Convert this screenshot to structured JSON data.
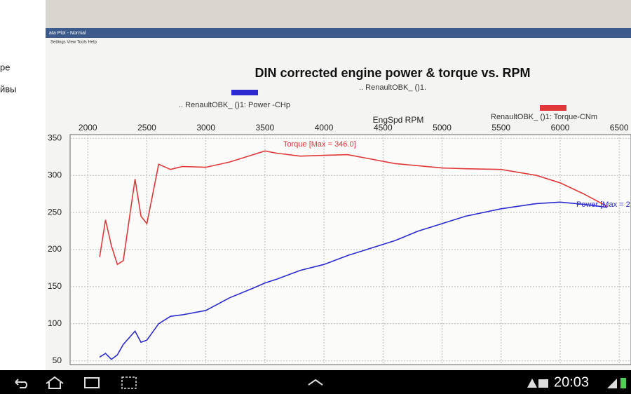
{
  "sidebar": [
    "ре",
    "йвы"
  ],
  "window": {
    "title": "ata Plot - Normal",
    "menu": "Settings  View  Tools  Help"
  },
  "status_bar": {
    "time": "20:03"
  },
  "chart_data": {
    "type": "line",
    "title": "DIN corrected engine power & torque vs. RPM",
    "subtitle": ".. RenaultOBK_ ()1.",
    "x_label": "EngSpd RPM",
    "x": [
      2100,
      2150,
      2200,
      2250,
      2300,
      2400,
      2450,
      2500,
      2600,
      2700,
      2800,
      3000,
      3200,
      3400,
      3500,
      3600,
      3800,
      4000,
      4200,
      4400,
      4600,
      4800,
      5000,
      5200,
      5500,
      5800,
      6000,
      6200,
      6400
    ],
    "series": [
      {
        "name": ".. RenaultOBK_ ()1: Power -CHp",
        "color": "#2a2ad0",
        "values": [
          55,
          60,
          52,
          58,
          72,
          90,
          75,
          78,
          100,
          110,
          112,
          118,
          135,
          148,
          155,
          160,
          172,
          180,
          192,
          202,
          212,
          225,
          235,
          245,
          255,
          262,
          264,
          261,
          257
        ]
      },
      {
        "name": "RenaultOBK_ ()1: Torque-CNm",
        "color": "#e03838",
        "values": [
          190,
          240,
          205,
          180,
          185,
          295,
          245,
          235,
          315,
          308,
          312,
          311,
          318,
          328,
          333,
          330,
          326,
          327,
          328,
          322,
          316,
          313,
          310,
          309,
          308,
          300,
          290,
          275,
          258
        ]
      }
    ],
    "annotations": [
      "Torque [Max = 346.0]",
      "Power [Max = 2"
    ],
    "xlim": [
      1850,
      6600
    ],
    "xticks": [
      2000,
      2500,
      3000,
      3500,
      4000,
      4500,
      5000,
      5500,
      6000,
      6500
    ],
    "ylim": [
      45,
      355
    ],
    "yticks": [
      50,
      100,
      150,
      200,
      250,
      300,
      350
    ],
    "grid": true
  }
}
